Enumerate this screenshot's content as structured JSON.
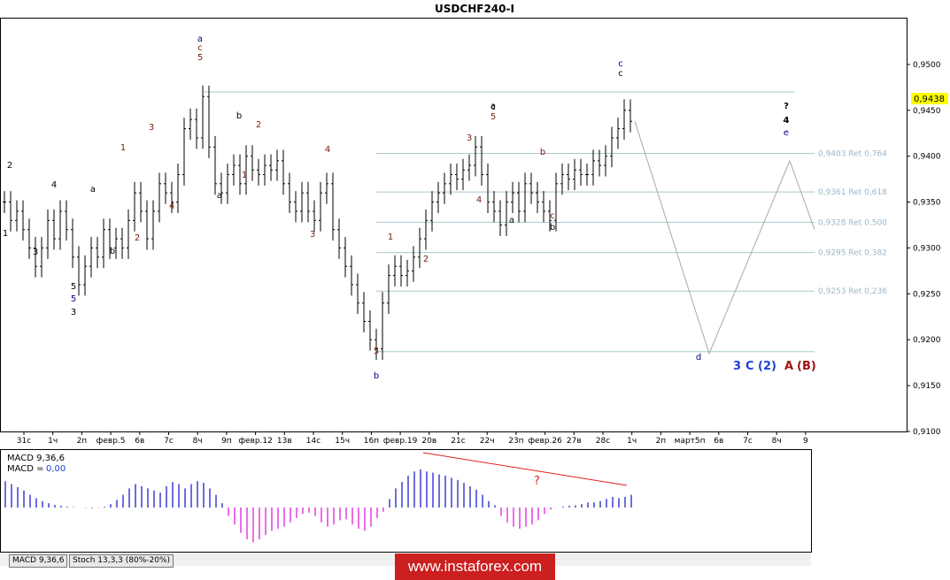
{
  "chart_data": {
    "type": "line",
    "title": "USDCHF240-I",
    "price_axis": {
      "ylim": [
        0.91,
        0.955
      ],
      "ticks": [
        "0,9500",
        "0,9450",
        "0,9400",
        "0,9350",
        "0,9300",
        "0,9250",
        "0,9200",
        "0,9150",
        "0,9100"
      ],
      "last_price": "0,9438"
    },
    "time_axis": {
      "ticks": [
        "31с",
        "1ч",
        "2п",
        "февр.5",
        "6в",
        "7с",
        "8ч",
        "9п",
        "февр.12",
        "13в",
        "14с",
        "15ч",
        "16п",
        "февр.19",
        "20в",
        "21с",
        "22ч",
        "23п",
        "февр.26",
        "27в",
        "28с",
        "1ч",
        "2п",
        "март5п",
        "6в",
        "7с",
        "8ч",
        "9"
      ]
    },
    "price_series": [
      [
        0,
        0.935
      ],
      [
        1,
        0.933
      ],
      [
        2,
        0.934
      ],
      [
        3,
        0.932
      ],
      [
        4,
        0.93
      ],
      [
        5,
        0.928
      ],
      [
        6,
        0.93
      ],
      [
        7,
        0.933
      ],
      [
        8,
        0.931
      ],
      [
        9,
        0.934
      ],
      [
        10,
        0.932
      ],
      [
        11,
        0.929
      ],
      [
        12,
        0.926
      ],
      [
        13,
        0.928
      ],
      [
        14,
        0.93
      ],
      [
        15,
        0.929
      ],
      [
        16,
        0.932
      ],
      [
        17,
        0.93
      ],
      [
        18,
        0.931
      ],
      [
        19,
        0.93
      ],
      [
        20,
        0.933
      ],
      [
        21,
        0.936
      ],
      [
        22,
        0.934
      ],
      [
        23,
        0.931
      ],
      [
        24,
        0.934
      ],
      [
        25,
        0.937
      ],
      [
        26,
        0.936
      ],
      [
        27,
        0.935
      ],
      [
        28,
        0.938
      ],
      [
        29,
        0.943
      ],
      [
        30,
        0.944
      ],
      [
        31,
        0.942
      ],
      [
        32,
        0.9465
      ],
      [
        33,
        0.941
      ],
      [
        34,
        0.937
      ],
      [
        35,
        0.936
      ],
      [
        36,
        0.938
      ],
      [
        37,
        0.939
      ],
      [
        38,
        0.937
      ],
      [
        39,
        0.94
      ],
      [
        40,
        0.9385
      ],
      [
        41,
        0.938
      ],
      [
        42,
        0.939
      ],
      [
        43,
        0.9385
      ],
      [
        44,
        0.9395
      ],
      [
        45,
        0.937
      ],
      [
        46,
        0.935
      ],
      [
        47,
        0.934
      ],
      [
        48,
        0.936
      ],
      [
        49,
        0.934
      ],
      [
        50,
        0.933
      ],
      [
        51,
        0.936
      ],
      [
        52,
        0.937
      ],
      [
        53,
        0.932
      ],
      [
        54,
        0.93
      ],
      [
        55,
        0.928
      ],
      [
        56,
        0.926
      ],
      [
        57,
        0.924
      ],
      [
        58,
        0.922
      ],
      [
        59,
        0.92
      ],
      [
        60,
        0.919
      ],
      [
        61,
        0.924
      ],
      [
        62,
        0.927
      ],
      [
        63,
        0.928
      ],
      [
        64,
        0.927
      ],
      [
        65,
        0.9275
      ],
      [
        66,
        0.929
      ],
      [
        67,
        0.931
      ],
      [
        68,
        0.933
      ],
      [
        69,
        0.935
      ],
      [
        70,
        0.936
      ],
      [
        71,
        0.937
      ],
      [
        72,
        0.938
      ],
      [
        73,
        0.9375
      ],
      [
        74,
        0.9385
      ],
      [
        75,
        0.939
      ],
      [
        76,
        0.941
      ],
      [
        77,
        0.938
      ],
      [
        78,
        0.935
      ],
      [
        79,
        0.934
      ],
      [
        80,
        0.9325
      ],
      [
        81,
        0.935
      ],
      [
        82,
        0.936
      ],
      [
        83,
        0.934
      ],
      [
        84,
        0.937
      ],
      [
        85,
        0.936
      ],
      [
        86,
        0.935
      ],
      [
        87,
        0.934
      ],
      [
        88,
        0.933
      ],
      [
        89,
        0.937
      ],
      [
        90,
        0.938
      ],
      [
        91,
        0.9375
      ],
      [
        92,
        0.9385
      ],
      [
        93,
        0.938
      ],
      [
        94,
        0.938
      ],
      [
        95,
        0.9395
      ],
      [
        96,
        0.939
      ],
      [
        97,
        0.94
      ],
      [
        98,
        0.942
      ],
      [
        99,
        0.943
      ],
      [
        100,
        0.945
      ],
      [
        101,
        0.9438
      ]
    ],
    "forecast_path": [
      [
        101,
        0.9438
      ],
      [
        113,
        0.9185
      ],
      [
        126,
        0.9395
      ],
      [
        130,
        0.932
      ]
    ],
    "horizontal_levels": [
      {
        "price": 0.947
      },
      {
        "price": 0.9403,
        "label": "0,9403 Ret 0,764"
      },
      {
        "price": 0.9361,
        "label": "0,9361 Ret 0,618"
      },
      {
        "price": 0.9328,
        "label": "0,9328 Ret 0,500"
      },
      {
        "price": 0.9295,
        "label": "0,9295 Ret 0,382"
      },
      {
        "price": 0.9253,
        "label": "0,9253 Ret 0,236"
      },
      {
        "price": 0.9187
      }
    ],
    "wave_labels": [
      {
        "t": "2",
        "c": "black"
      },
      {
        "t": "1",
        "c": "black"
      },
      {
        "t": "3",
        "c": "black"
      },
      {
        "t": "4",
        "c": "black"
      },
      {
        "t": "5",
        "c": "black"
      },
      {
        "t": "5",
        "c": "blue"
      },
      {
        "t": "3",
        "c": "black"
      },
      {
        "t": "a",
        "c": "black"
      },
      {
        "t": "b",
        "c": "black"
      },
      {
        "t": "1",
        "c": "brown"
      },
      {
        "t": "2",
        "c": "brown"
      },
      {
        "t": "3",
        "c": "brown"
      },
      {
        "t": "4",
        "c": "brown"
      },
      {
        "t": "a",
        "c": "blue"
      },
      {
        "t": "c",
        "c": "brown"
      },
      {
        "t": "5",
        "c": "brown"
      },
      {
        "t": "b",
        "c": "black"
      },
      {
        "t": "a",
        "c": "black"
      },
      {
        "t": "2",
        "c": "brown"
      },
      {
        "t": "1",
        "c": "brown"
      },
      {
        "t": "4",
        "c": "brown"
      },
      {
        "t": "3",
        "c": "brown"
      },
      {
        "t": "5",
        "c": "brown"
      },
      {
        "t": "c",
        "c": "black"
      },
      {
        "t": "b",
        "c": "blue"
      },
      {
        "t": "1",
        "c": "brown"
      },
      {
        "t": "2",
        "c": "brown"
      },
      {
        "t": "3",
        "c": "brown"
      },
      {
        "t": "a",
        "c": "black"
      },
      {
        "t": "5",
        "c": "brown"
      },
      {
        "t": "4",
        "c": "brown"
      },
      {
        "t": "a",
        "c": "black"
      },
      {
        "t": "b",
        "c": "brown"
      },
      {
        "t": "c",
        "c": "brown"
      },
      {
        "t": "b",
        "c": "black"
      },
      {
        "t": "c",
        "c": "blue"
      },
      {
        "t": "c",
        "c": "black"
      },
      {
        "t": "?",
        "c": "black"
      },
      {
        "t": "4",
        "c": "black"
      },
      {
        "t": "e",
        "c": "blue"
      },
      {
        "t": "d",
        "c": "blue"
      }
    ],
    "wave_degree_legend": [
      {
        "t": "3",
        "color": "#1a3fd6"
      },
      {
        "t": "C",
        "color": "#1a3fd6"
      },
      {
        "t": "(2)",
        "color": "#1a3fd6"
      },
      {
        "t": "A",
        "color": "#a01414"
      },
      {
        "t": "(B)",
        "color": "#a01414"
      }
    ],
    "indicator": {
      "name": "MACD 9,36,6",
      "value_label": "MACD =",
      "value": "0,00",
      "divergence_mark": "?",
      "histogram": [
        0.62,
        0.55,
        0.48,
        0.4,
        0.3,
        0.22,
        0.15,
        0.1,
        0.06,
        0.04,
        0.02,
        0.01,
        0.0,
        -0.01,
        -0.02,
        -0.01,
        0.02,
        0.08,
        0.18,
        0.3,
        0.45,
        0.55,
        0.5,
        0.45,
        0.4,
        0.35,
        0.5,
        0.6,
        0.55,
        0.45,
        0.55,
        0.62,
        0.58,
        0.45,
        0.3,
        0.1,
        -0.2,
        -0.4,
        -0.6,
        -0.75,
        -0.82,
        -0.75,
        -0.65,
        -0.55,
        -0.5,
        -0.45,
        -0.35,
        -0.25,
        -0.15,
        -0.12,
        -0.2,
        -0.35,
        -0.45,
        -0.4,
        -0.3,
        -0.28,
        -0.4,
        -0.5,
        -0.55,
        -0.45,
        -0.25,
        -0.1,
        0.2,
        0.45,
        0.6,
        0.75,
        0.85,
        0.9,
        0.85,
        0.82,
        0.78,
        0.75,
        0.7,
        0.65,
        0.58,
        0.5,
        0.42,
        0.3,
        0.15,
        0.05,
        -0.2,
        -0.35,
        -0.45,
        -0.5,
        -0.45,
        -0.4,
        -0.3,
        -0.15,
        -0.05,
        0.0,
        0.02,
        0.04,
        0.05,
        0.08,
        0.12,
        0.12,
        0.15,
        0.2,
        0.25,
        0.22,
        0.25,
        0.3
      ],
      "ylim": [
        -1.0,
        1.0
      ]
    },
    "bottom_tabs": [
      "MACD 9,36,6",
      "Stoch 13,3,3 (80%-20%)"
    ]
  },
  "watermark": "www.instaforex.com",
  "colors": {
    "price": "#000000",
    "fib_line": "#a9c8cf",
    "forecast": "#a8a8a8",
    "hist_pos": "#3030d0",
    "hist_neg": "#e030e0",
    "divergence": "#e02020",
    "last_price_bg": "#ffff00"
  }
}
